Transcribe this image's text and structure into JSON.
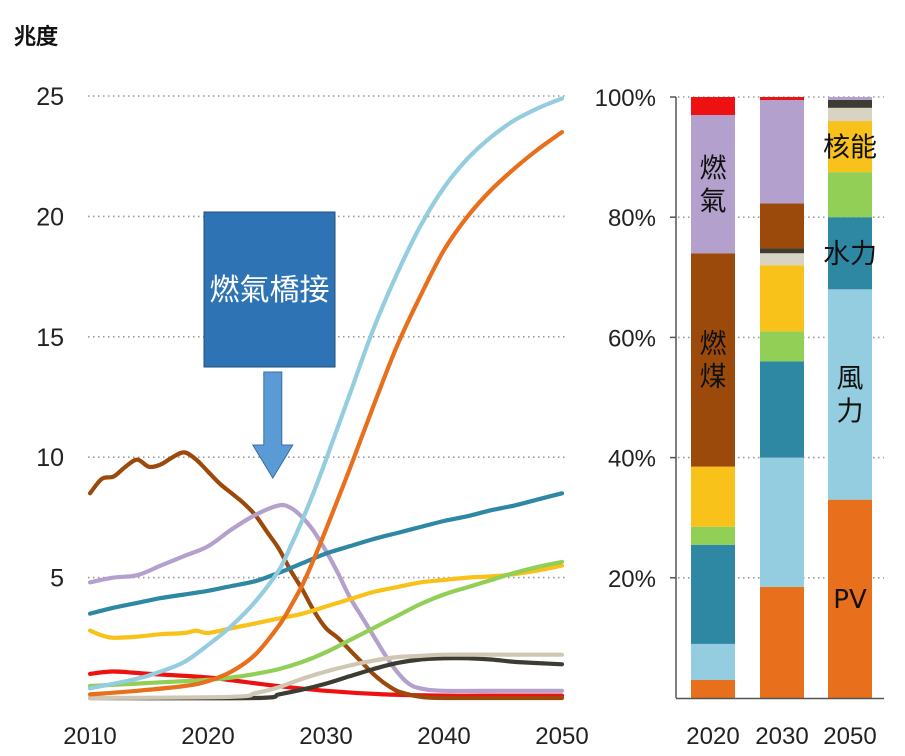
{
  "chart_data": [
    {
      "type": "line",
      "ylabel": "兆度",
      "xlim": [
        2010,
        2050
      ],
      "ylim": [
        0,
        25
      ],
      "x_ticks": [
        "2010",
        "2020",
        "2030",
        "2040",
        "2050"
      ],
      "y_ticks": [
        "5",
        "10",
        "15",
        "20",
        "25"
      ],
      "grid": "horizontal dotted",
      "annotation": {
        "text": "燃氣橋接",
        "points_to_x": 2026
      },
      "series": [
        {
          "color": "#ee1111",
          "points": [
            [
              2010,
              1.0
            ],
            [
              2012,
              1.1
            ],
            [
              2015,
              1.0
            ],
            [
              2020,
              0.85
            ],
            [
              2025,
              0.55
            ],
            [
              2030,
              0.3
            ],
            [
              2035,
              0.15
            ],
            [
              2040,
              0.1
            ],
            [
              2045,
              0.1
            ],
            [
              2050,
              0.1
            ]
          ]
        },
        {
          "color": "#9b4a0c",
          "points": [
            [
              2010,
              8.5
            ],
            [
              2011,
              9.1
            ],
            [
              2012,
              9.2
            ],
            [
              2013,
              9.6
            ],
            [
              2014,
              9.9
            ],
            [
              2015,
              9.6
            ],
            [
              2016,
              9.7
            ],
            [
              2017,
              10.0
            ],
            [
              2018,
              10.2
            ],
            [
              2019,
              9.9
            ],
            [
              2020,
              9.4
            ],
            [
              2021,
              8.9
            ],
            [
              2022,
              8.5
            ],
            [
              2023,
              8.1
            ],
            [
              2024,
              7.6
            ],
            [
              2025,
              6.9
            ],
            [
              2026,
              6.2
            ],
            [
              2027,
              5.3
            ],
            [
              2028,
              4.5
            ],
            [
              2029,
              3.6
            ],
            [
              2030,
              2.9
            ],
            [
              2031,
              2.5
            ],
            [
              2032,
              2.0
            ],
            [
              2033,
              1.5
            ],
            [
              2034,
              1.0
            ],
            [
              2035,
              0.6
            ],
            [
              2036,
              0.3
            ],
            [
              2037,
              0.15
            ],
            [
              2038,
              0.05
            ],
            [
              2040,
              0.0
            ],
            [
              2050,
              0.0
            ]
          ]
        },
        {
          "color": "#b3a0cc",
          "points": [
            [
              2010,
              4.8
            ],
            [
              2012,
              5.0
            ],
            [
              2014,
              5.1
            ],
            [
              2016,
              5.5
            ],
            [
              2018,
              5.9
            ],
            [
              2020,
              6.3
            ],
            [
              2022,
              7.0
            ],
            [
              2024,
              7.6
            ],
            [
              2026,
              8.0
            ],
            [
              2027,
              7.9
            ],
            [
              2028,
              7.5
            ],
            [
              2029,
              6.9
            ],
            [
              2030,
              6.1
            ],
            [
              2031,
              5.2
            ],
            [
              2032,
              4.2
            ],
            [
              2033,
              3.4
            ],
            [
              2034,
              2.6
            ],
            [
              2035,
              1.8
            ],
            [
              2036,
              1.1
            ],
            [
              2037,
              0.6
            ],
            [
              2038,
              0.4
            ],
            [
              2040,
              0.3
            ],
            [
              2045,
              0.3
            ],
            [
              2050,
              0.3
            ]
          ]
        },
        {
          "color": "#2e88a4",
          "points": [
            [
              2010,
              3.5
            ],
            [
              2012,
              3.75
            ],
            [
              2014,
              3.95
            ],
            [
              2016,
              4.15
            ],
            [
              2018,
              4.3
            ],
            [
              2020,
              4.45
            ],
            [
              2022,
              4.65
            ],
            [
              2024,
              4.85
            ],
            [
              2026,
              5.2
            ],
            [
              2028,
              5.6
            ],
            [
              2030,
              6.0
            ],
            [
              2032,
              6.3
            ],
            [
              2034,
              6.6
            ],
            [
              2036,
              6.85
            ],
            [
              2038,
              7.1
            ],
            [
              2040,
              7.35
            ],
            [
              2042,
              7.55
            ],
            [
              2044,
              7.8
            ],
            [
              2046,
              8.0
            ],
            [
              2048,
              8.25
            ],
            [
              2050,
              8.5
            ]
          ]
        },
        {
          "color": "#f8c21a",
          "points": [
            [
              2010,
              2.8
            ],
            [
              2011,
              2.6
            ],
            [
              2012,
              2.5
            ],
            [
              2014,
              2.55
            ],
            [
              2016,
              2.65
            ],
            [
              2018,
              2.7
            ],
            [
              2019,
              2.8
            ],
            [
              2020,
              2.7
            ],
            [
              2022,
              2.9
            ],
            [
              2024,
              3.1
            ],
            [
              2026,
              3.3
            ],
            [
              2028,
              3.5
            ],
            [
              2030,
              3.8
            ],
            [
              2032,
              4.1
            ],
            [
              2034,
              4.4
            ],
            [
              2036,
              4.6
            ],
            [
              2038,
              4.8
            ],
            [
              2040,
              4.9
            ],
            [
              2042,
              5.0
            ],
            [
              2044,
              5.05
            ],
            [
              2046,
              5.15
            ],
            [
              2048,
              5.3
            ],
            [
              2050,
              5.5
            ]
          ]
        },
        {
          "color": "#91cf56",
          "points": [
            [
              2010,
              0.5
            ],
            [
              2014,
              0.6
            ],
            [
              2018,
              0.7
            ],
            [
              2020,
              0.75
            ],
            [
              2022,
              0.85
            ],
            [
              2024,
              1.0
            ],
            [
              2026,
              1.2
            ],
            [
              2028,
              1.5
            ],
            [
              2030,
              1.9
            ],
            [
              2032,
              2.4
            ],
            [
              2034,
              2.9
            ],
            [
              2036,
              3.4
            ],
            [
              2038,
              3.9
            ],
            [
              2040,
              4.3
            ],
            [
              2042,
              4.6
            ],
            [
              2044,
              4.9
            ],
            [
              2046,
              5.2
            ],
            [
              2048,
              5.45
            ],
            [
              2050,
              5.65
            ]
          ]
        },
        {
          "color": "#3c3c32",
          "points": [
            [
              2010,
              0.0
            ],
            [
              2024,
              0.0
            ],
            [
              2026,
              0.15
            ],
            [
              2028,
              0.35
            ],
            [
              2030,
              0.6
            ],
            [
              2032,
              0.9
            ],
            [
              2034,
              1.2
            ],
            [
              2036,
              1.45
            ],
            [
              2038,
              1.6
            ],
            [
              2040,
              1.65
            ],
            [
              2042,
              1.65
            ],
            [
              2044,
              1.6
            ],
            [
              2046,
              1.5
            ],
            [
              2048,
              1.45
            ],
            [
              2050,
              1.4
            ]
          ]
        },
        {
          "color": "#cfc7b4",
          "points": [
            [
              2010,
              0.0
            ],
            [
              2022,
              0.05
            ],
            [
              2024,
              0.2
            ],
            [
              2026,
              0.45
            ],
            [
              2028,
              0.8
            ],
            [
              2030,
              1.1
            ],
            [
              2032,
              1.35
            ],
            [
              2034,
              1.55
            ],
            [
              2036,
              1.7
            ],
            [
              2038,
              1.75
            ],
            [
              2040,
              1.8
            ],
            [
              2045,
              1.8
            ],
            [
              2050,
              1.8
            ]
          ]
        },
        {
          "color": "#e86f1b",
          "points": [
            [
              2010,
              0.15
            ],
            [
              2014,
              0.3
            ],
            [
              2018,
              0.5
            ],
            [
              2020,
              0.7
            ],
            [
              2022,
              1.1
            ],
            [
              2024,
              1.8
            ],
            [
              2026,
              3.0
            ],
            [
              2027,
              3.8
            ],
            [
              2028,
              4.7
            ],
            [
              2029,
              5.8
            ],
            [
              2030,
              7.0
            ],
            [
              2032,
              9.5
            ],
            [
              2034,
              12.1
            ],
            [
              2036,
              14.6
            ],
            [
              2038,
              16.7
            ],
            [
              2040,
              18.6
            ],
            [
              2042,
              20.0
            ],
            [
              2044,
              21.1
            ],
            [
              2046,
              22.0
            ],
            [
              2048,
              22.8
            ],
            [
              2050,
              23.5
            ]
          ]
        },
        {
          "color": "#94cce0",
          "points": [
            [
              2010,
              0.4
            ],
            [
              2014,
              0.8
            ],
            [
              2016,
              1.1
            ],
            [
              2018,
              1.5
            ],
            [
              2020,
              2.2
            ],
            [
              2022,
              3.0
            ],
            [
              2024,
              4.0
            ],
            [
              2026,
              5.3
            ],
            [
              2027,
              6.3
            ],
            [
              2028,
              7.4
            ],
            [
              2029,
              8.6
            ],
            [
              2030,
              9.9
            ],
            [
              2032,
              12.6
            ],
            [
              2034,
              15.3
            ],
            [
              2036,
              17.6
            ],
            [
              2038,
              19.6
            ],
            [
              2040,
              21.2
            ],
            [
              2042,
              22.4
            ],
            [
              2044,
              23.3
            ],
            [
              2046,
              24.0
            ],
            [
              2048,
              24.5
            ],
            [
              2050,
              24.9
            ]
          ]
        }
      ]
    },
    {
      "type": "bar",
      "stacked": true,
      "percent": true,
      "categories": [
        "2020",
        "2030",
        "2050"
      ],
      "y_ticks": [
        "20%",
        "40%",
        "60%",
        "80%",
        "100%"
      ],
      "ylim": [
        0,
        100
      ],
      "series_colors": {
        "PV": "#e86f1b",
        "風力": "#94cce0",
        "水力": "#2e88a4",
        "other_renewable": "#91cf56",
        "核能": "#f8c21a",
        "misc_light": "#d9d3c4",
        "misc_dark": "#3c3c32",
        "燃煤": "#9b4a0c",
        "燃氣": "#b3a0cc",
        "oil": "#ee1111"
      },
      "stacks": [
        {
          "category": "2020",
          "segments": [
            {
              "key": "PV",
              "value": 3
            },
            {
              "key": "風力",
              "value": 6
            },
            {
              "key": "水力",
              "value": 16.5
            },
            {
              "key": "other_renewable",
              "value": 3
            },
            {
              "key": "核能",
              "value": 10
            },
            {
              "key": "燃煤",
              "value": 35.5
            },
            {
              "key": "燃氣",
              "value": 23
            },
            {
              "key": "oil",
              "value": 3
            }
          ]
        },
        {
          "category": "2030",
          "segments": [
            {
              "key": "PV",
              "value": 18.5
            },
            {
              "key": "風力",
              "value": 21.5
            },
            {
              "key": "水力",
              "value": 16
            },
            {
              "key": "other_renewable",
              "value": 5
            },
            {
              "key": "核能",
              "value": 11
            },
            {
              "key": "misc_light",
              "value": 2
            },
            {
              "key": "misc_dark",
              "value": 0.8
            },
            {
              "key": "燃煤",
              "value": 7.5
            },
            {
              "key": "燃氣",
              "value": 17.2
            },
            {
              "key": "oil",
              "value": 0.5
            }
          ]
        },
        {
          "category": "2050",
          "segments": [
            {
              "key": "PV",
              "value": 33
            },
            {
              "key": "風力",
              "value": 35
            },
            {
              "key": "水力",
              "value": 12
            },
            {
              "key": "other_renewable",
              "value": 7.5
            },
            {
              "key": "核能",
              "value": 8.5
            },
            {
              "key": "misc_light",
              "value": 2.2
            },
            {
              "key": "misc_dark",
              "value": 1.3
            },
            {
              "key": "燃氣",
              "value": 0.5
            }
          ]
        }
      ],
      "labels": [
        {
          "bar": "2020",
          "text": "燃氣",
          "vertical": true
        },
        {
          "bar": "2020",
          "text": "燃煤",
          "vertical": true
        },
        {
          "bar": "2050",
          "text": "核能",
          "vertical": false
        },
        {
          "bar": "2050",
          "text": "水力",
          "vertical": false
        },
        {
          "bar": "2050",
          "text": "風力",
          "vertical": true
        },
        {
          "bar": "2050",
          "text": "PV",
          "vertical": false
        }
      ]
    }
  ]
}
